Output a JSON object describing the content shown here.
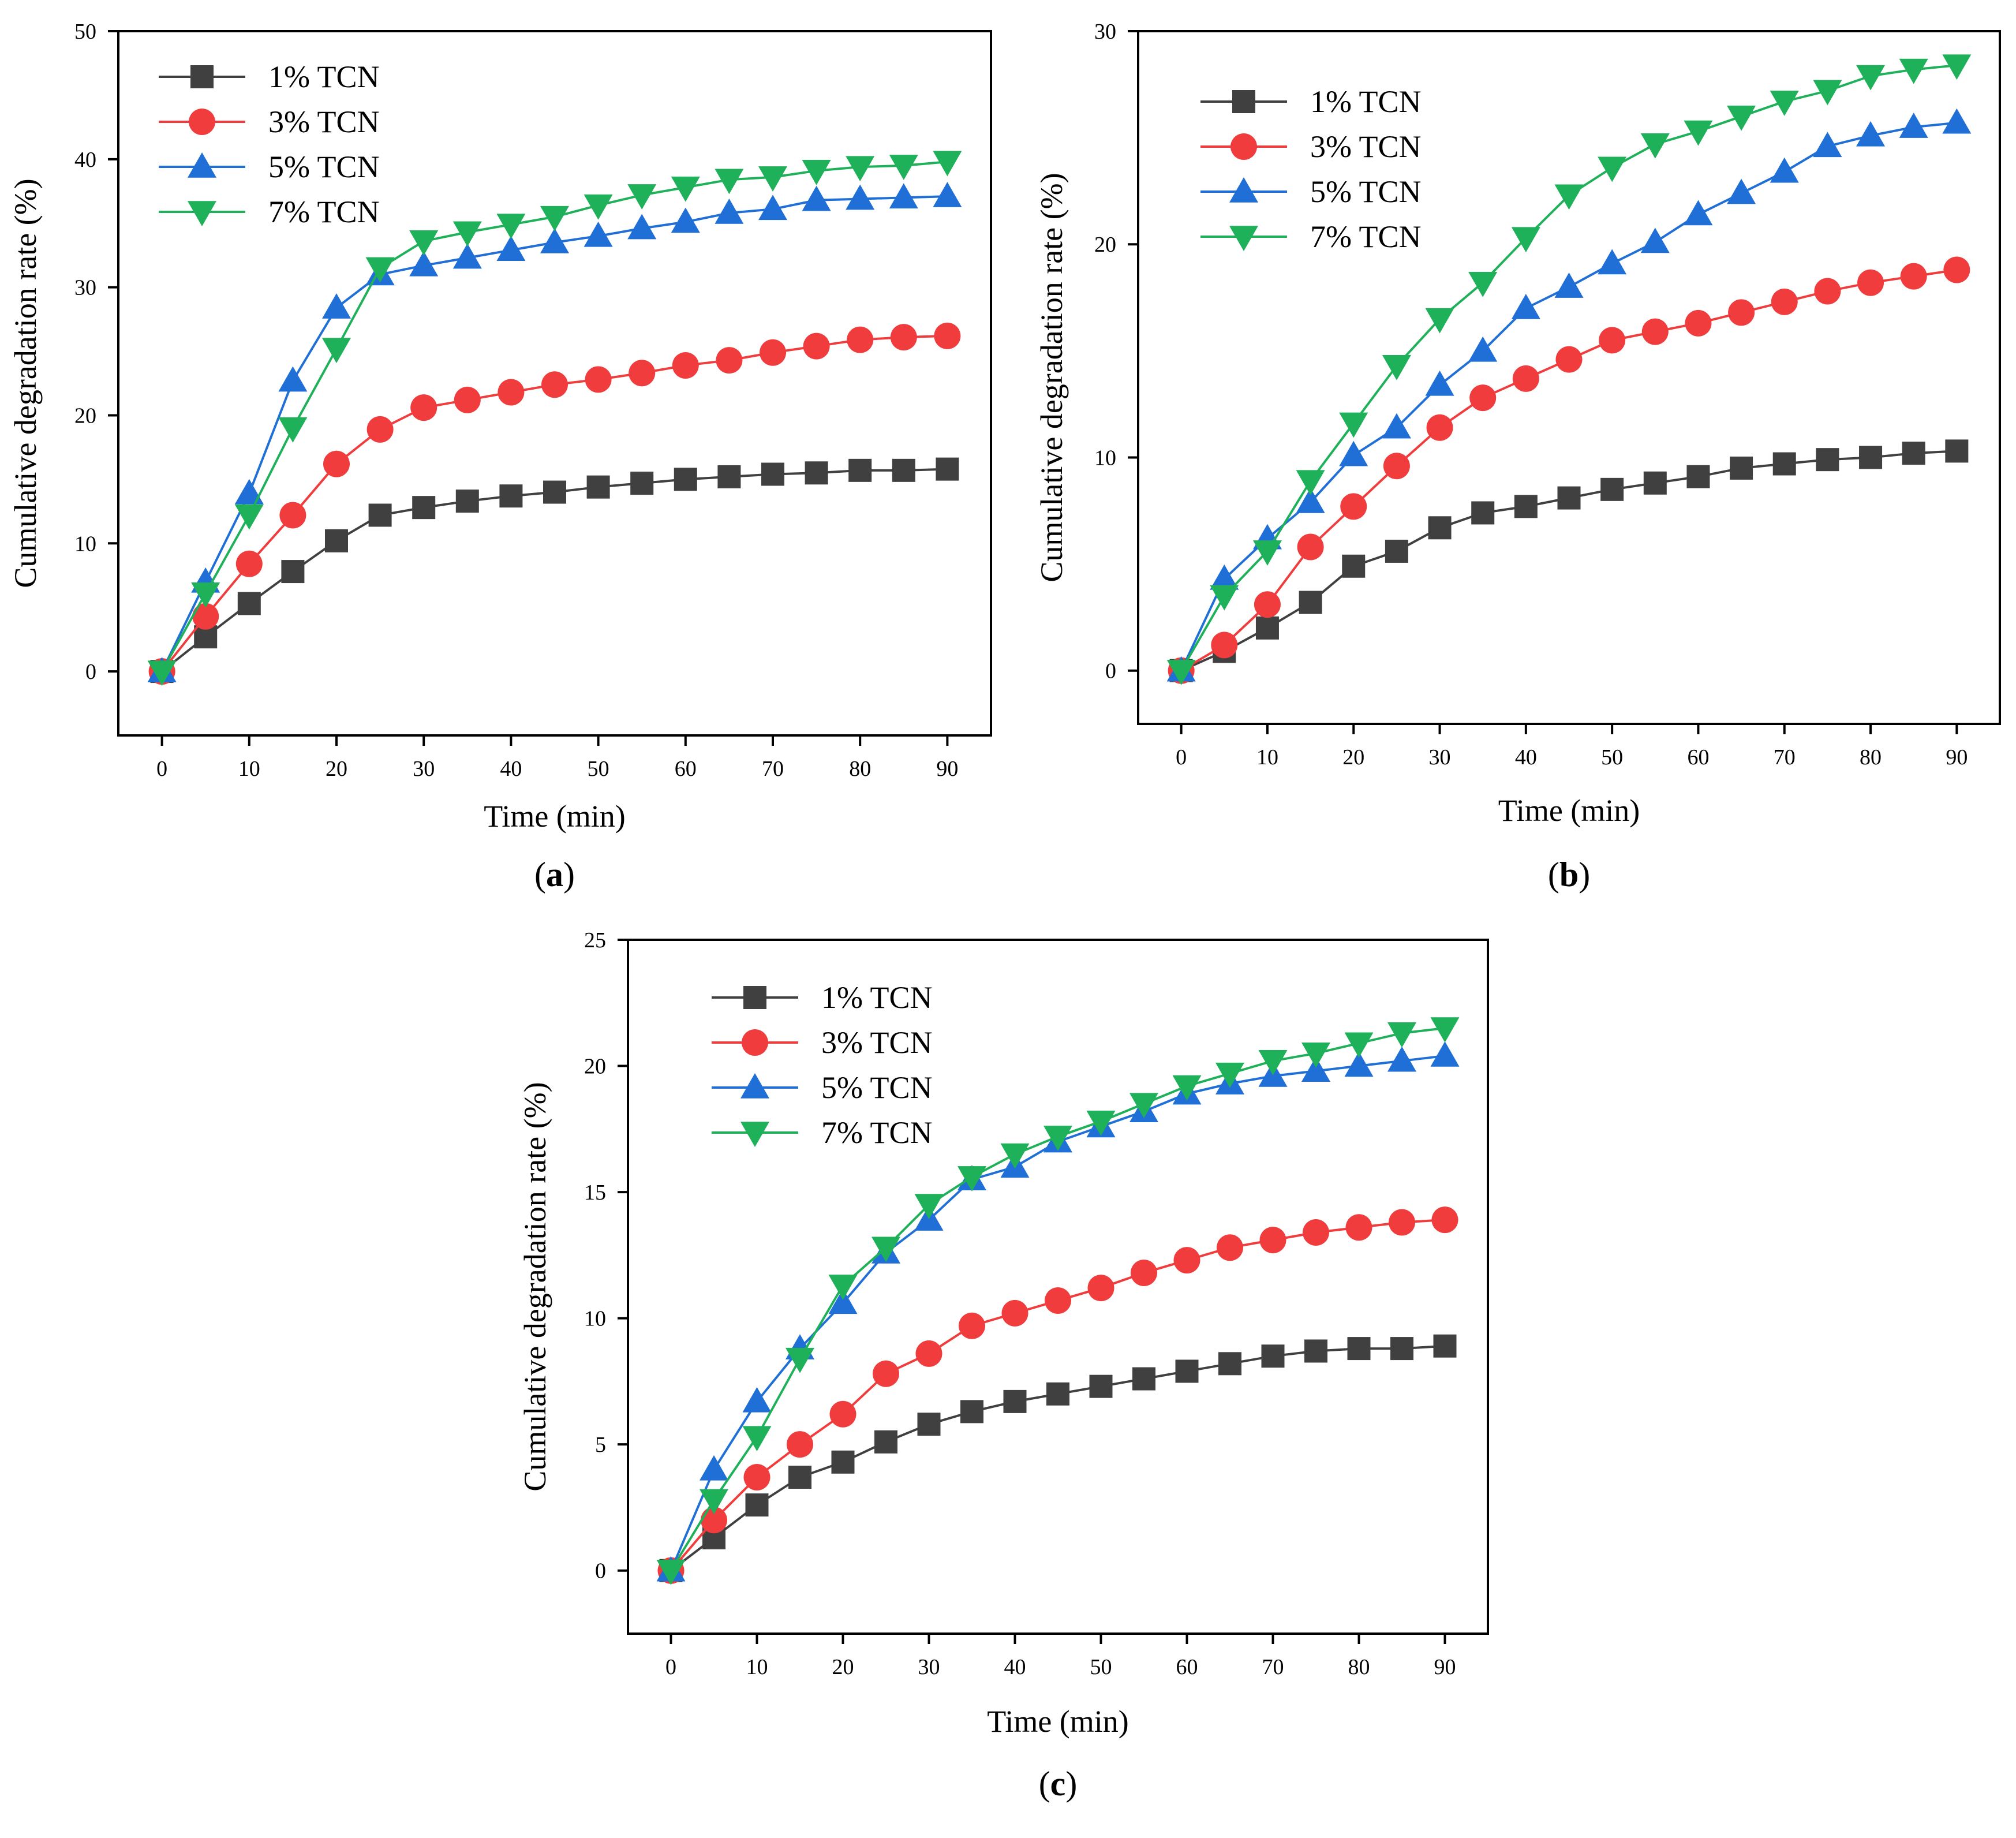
{
  "chart_data": [
    {
      "type": "line",
      "panel_label": "a",
      "title": "",
      "xlabel": "Time (min)",
      "ylabel": "Cumulative degradation rate (%)",
      "xlim": [
        -5,
        95
      ],
      "ylim": [
        -5,
        50
      ],
      "xticks": [
        0,
        10,
        20,
        30,
        40,
        50,
        60,
        70,
        80,
        90
      ],
      "yticks": [
        0,
        10,
        20,
        30,
        40,
        50
      ],
      "grid": false,
      "legend_position": "top-left",
      "x": [
        0,
        5,
        10,
        15,
        20,
        25,
        30,
        35,
        40,
        45,
        50,
        55,
        60,
        65,
        70,
        75,
        80,
        85,
        90
      ],
      "series": [
        {
          "name": "1% TCN",
          "color": "#404040",
          "marker": "square",
          "values": [
            0,
            2.7,
            5.3,
            7.8,
            10.2,
            12.2,
            12.8,
            13.3,
            13.7,
            14.0,
            14.4,
            14.7,
            15.0,
            15.2,
            15.4,
            15.5,
            15.7,
            15.7,
            15.8
          ]
        },
        {
          "name": "3% TCN",
          "color": "#f03c3c",
          "marker": "circle",
          "values": [
            0,
            4.3,
            8.4,
            12.2,
            16.2,
            18.9,
            20.6,
            21.2,
            21.8,
            22.4,
            22.8,
            23.3,
            23.9,
            24.3,
            24.9,
            25.4,
            25.9,
            26.1,
            26.2
          ]
        },
        {
          "name": "5% TCN",
          "color": "#1f6fd6",
          "marker": "triangle-up",
          "values": [
            0,
            7.0,
            13.9,
            22.7,
            28.4,
            31.0,
            31.7,
            32.3,
            32.9,
            33.5,
            34.0,
            34.6,
            35.1,
            35.8,
            36.1,
            36.8,
            36.9,
            37.0,
            37.1
          ]
        },
        {
          "name": "7% TCN",
          "color": "#1fb05a",
          "marker": "triangle-down",
          "values": [
            0,
            6.1,
            12.2,
            19.0,
            25.2,
            31.5,
            33.6,
            34.3,
            34.9,
            35.5,
            36.4,
            37.2,
            37.8,
            38.4,
            38.6,
            39.1,
            39.4,
            39.5,
            39.8
          ]
        }
      ]
    },
    {
      "type": "line",
      "panel_label": "b",
      "title": "",
      "xlabel": "Time (min)",
      "ylabel": "Cumulative degradation rate (%)",
      "xlim": [
        -5,
        95
      ],
      "ylim": [
        -2.5,
        30
      ],
      "xticks": [
        0,
        10,
        20,
        30,
        40,
        50,
        60,
        70,
        80,
        90
      ],
      "yticks": [
        0,
        10,
        20,
        30
      ],
      "grid": false,
      "legend_position": "top-left",
      "x": [
        0,
        5,
        10,
        15,
        20,
        25,
        30,
        35,
        40,
        45,
        50,
        55,
        60,
        65,
        70,
        75,
        80,
        85,
        90
      ],
      "series": [
        {
          "name": "1% TCN",
          "color": "#404040",
          "marker": "square",
          "values": [
            0,
            0.9,
            2.0,
            3.2,
            4.9,
            5.6,
            6.7,
            7.4,
            7.7,
            8.1,
            8.5,
            8.8,
            9.1,
            9.5,
            9.7,
            9.9,
            10.0,
            10.2,
            10.3
          ]
        },
        {
          "name": "3% TCN",
          "color": "#f03c3c",
          "marker": "circle",
          "values": [
            0,
            1.2,
            3.1,
            5.8,
            7.7,
            9.6,
            11.4,
            12.8,
            13.7,
            14.6,
            15.5,
            15.9,
            16.3,
            16.8,
            17.3,
            17.8,
            18.2,
            18.5,
            18.8
          ]
        },
        {
          "name": "5% TCN",
          "color": "#1f6fd6",
          "marker": "triangle-up",
          "values": [
            0,
            4.3,
            6.2,
            7.9,
            10.1,
            11.4,
            13.4,
            15.0,
            17.0,
            18.0,
            19.1,
            20.1,
            21.4,
            22.4,
            23.4,
            24.6,
            25.1,
            25.5,
            25.7
          ]
        },
        {
          "name": "7% TCN",
          "color": "#1fb05a",
          "marker": "triangle-down",
          "values": [
            0,
            3.5,
            5.6,
            8.9,
            11.6,
            14.3,
            16.5,
            18.2,
            20.3,
            22.3,
            23.6,
            24.7,
            25.3,
            26.0,
            26.7,
            27.2,
            27.9,
            28.2,
            28.4
          ]
        }
      ]
    },
    {
      "type": "line",
      "panel_label": "c",
      "title": "",
      "xlabel": "Time (min)",
      "ylabel": "Cumulative degradation rate (%)",
      "xlim": [
        -5,
        95
      ],
      "ylim": [
        -2.5,
        25
      ],
      "xticks": [
        0,
        10,
        20,
        30,
        40,
        50,
        60,
        70,
        80,
        90
      ],
      "yticks": [
        0,
        5,
        10,
        15,
        20,
        25
      ],
      "grid": false,
      "legend_position": "top-left",
      "x": [
        0,
        5,
        10,
        15,
        20,
        25,
        30,
        35,
        40,
        45,
        50,
        55,
        60,
        65,
        70,
        75,
        80,
        85,
        90
      ],
      "series": [
        {
          "name": "1% TCN",
          "color": "#404040",
          "marker": "square",
          "values": [
            0,
            1.3,
            2.6,
            3.7,
            4.3,
            5.1,
            5.8,
            6.3,
            6.7,
            7.0,
            7.3,
            7.6,
            7.9,
            8.2,
            8.5,
            8.7,
            8.8,
            8.8,
            8.9
          ]
        },
        {
          "name": "3% TCN",
          "color": "#f03c3c",
          "marker": "circle",
          "values": [
            0,
            2.0,
            3.7,
            5.0,
            6.2,
            7.8,
            8.6,
            9.7,
            10.2,
            10.7,
            11.2,
            11.8,
            12.3,
            12.8,
            13.1,
            13.4,
            13.6,
            13.8,
            13.9
          ]
        },
        {
          "name": "5% TCN",
          "color": "#1f6fd6",
          "marker": "triangle-up",
          "values": [
            0,
            4.0,
            6.7,
            8.8,
            10.6,
            12.6,
            13.9,
            15.5,
            16.0,
            17.0,
            17.6,
            18.2,
            18.9,
            19.3,
            19.6,
            19.8,
            20.0,
            20.2,
            20.4
          ]
        },
        {
          "name": "7% TCN",
          "color": "#1fb05a",
          "marker": "triangle-down",
          "values": [
            0,
            2.8,
            5.3,
            8.4,
            11.3,
            12.8,
            14.5,
            15.6,
            16.5,
            17.2,
            17.8,
            18.5,
            19.2,
            19.7,
            20.2,
            20.5,
            20.9,
            21.3,
            21.5
          ]
        }
      ]
    }
  ]
}
